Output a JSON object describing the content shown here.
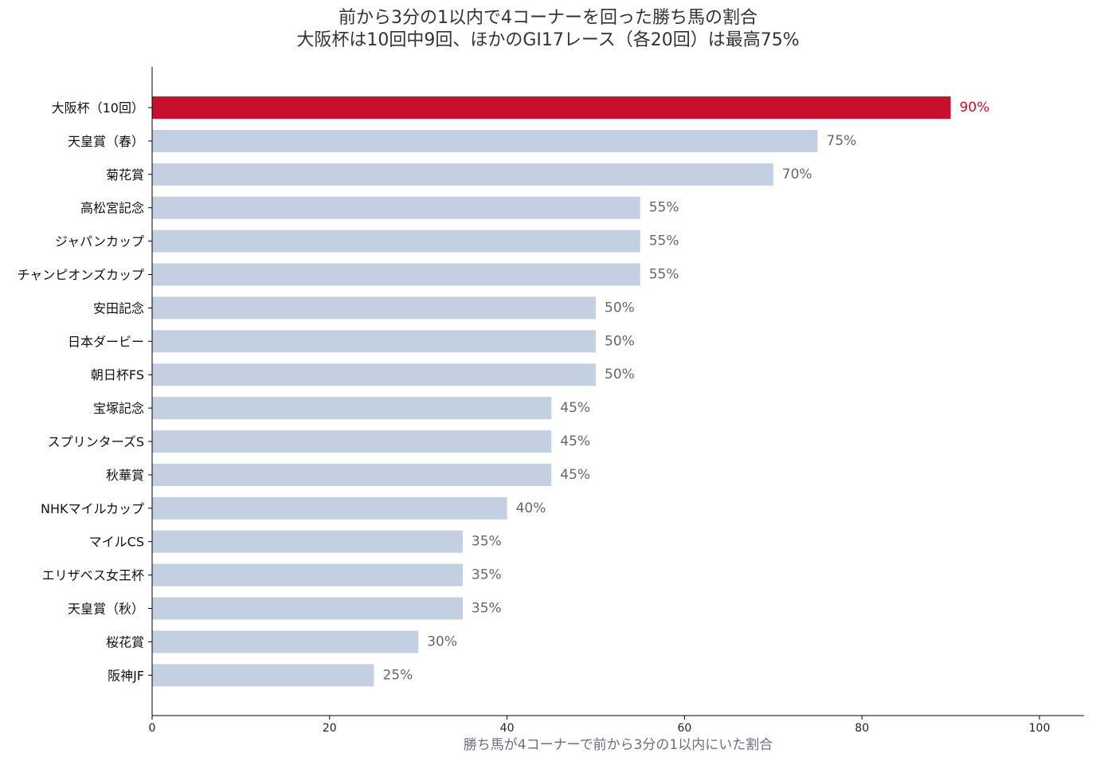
{
  "chart_data": {
    "type": "bar",
    "orientation": "horizontal",
    "title": [
      "前から3分の1以内で4コーナーを回った勝ち馬の割合",
      "大阪杯は10回中9回、ほかのGⅠ17レース（各20回）は最高75%"
    ],
    "xlabel": "勝ち馬が4コーナーで前から3分の1以内にいた割合",
    "ylabel": "",
    "xlim": [
      0,
      105
    ],
    "xticks": [
      0,
      20,
      40,
      60,
      80,
      100
    ],
    "grid": false,
    "legend": "none",
    "value_suffix": "%",
    "categories": [
      "大阪杯（10回）",
      "天皇賞（春）",
      "菊花賞",
      "高松宮記念",
      "ジャパンカップ",
      "チャンピオンズカップ",
      "安田記念",
      "日本ダービー",
      "朝日杯FS",
      "宝塚記念",
      "スプリンターズS",
      "秋華賞",
      "NHKマイルカップ",
      "マイルCS",
      "エリザベス女王杯",
      "天皇賞（秋）",
      "桜花賞",
      "阪神JF"
    ],
    "values": [
      90,
      75,
      70,
      55,
      55,
      55,
      50,
      50,
      50,
      45,
      45,
      45,
      40,
      35,
      35,
      35,
      30,
      25
    ],
    "highlight_index": 0,
    "colors": {
      "highlight": "#c8102e",
      "default": "#c3d0e1",
      "highlight_label": "#c8102e",
      "default_label": "#666666",
      "xlabel": "#6a7080",
      "axis": "#000000"
    }
  }
}
